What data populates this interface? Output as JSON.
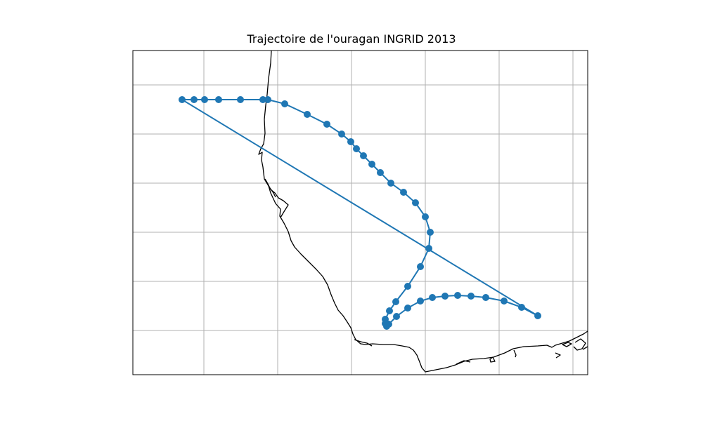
{
  "title": "Trajectoire de l'ouragan INGRID 2013",
  "map": {
    "gridlines": true,
    "coastline": true,
    "track_color": "#1f77b4",
    "coast_color": "#000000",
    "grid_color": "#b0b0b0",
    "storm": "INGRID",
    "year": 2013
  }
}
